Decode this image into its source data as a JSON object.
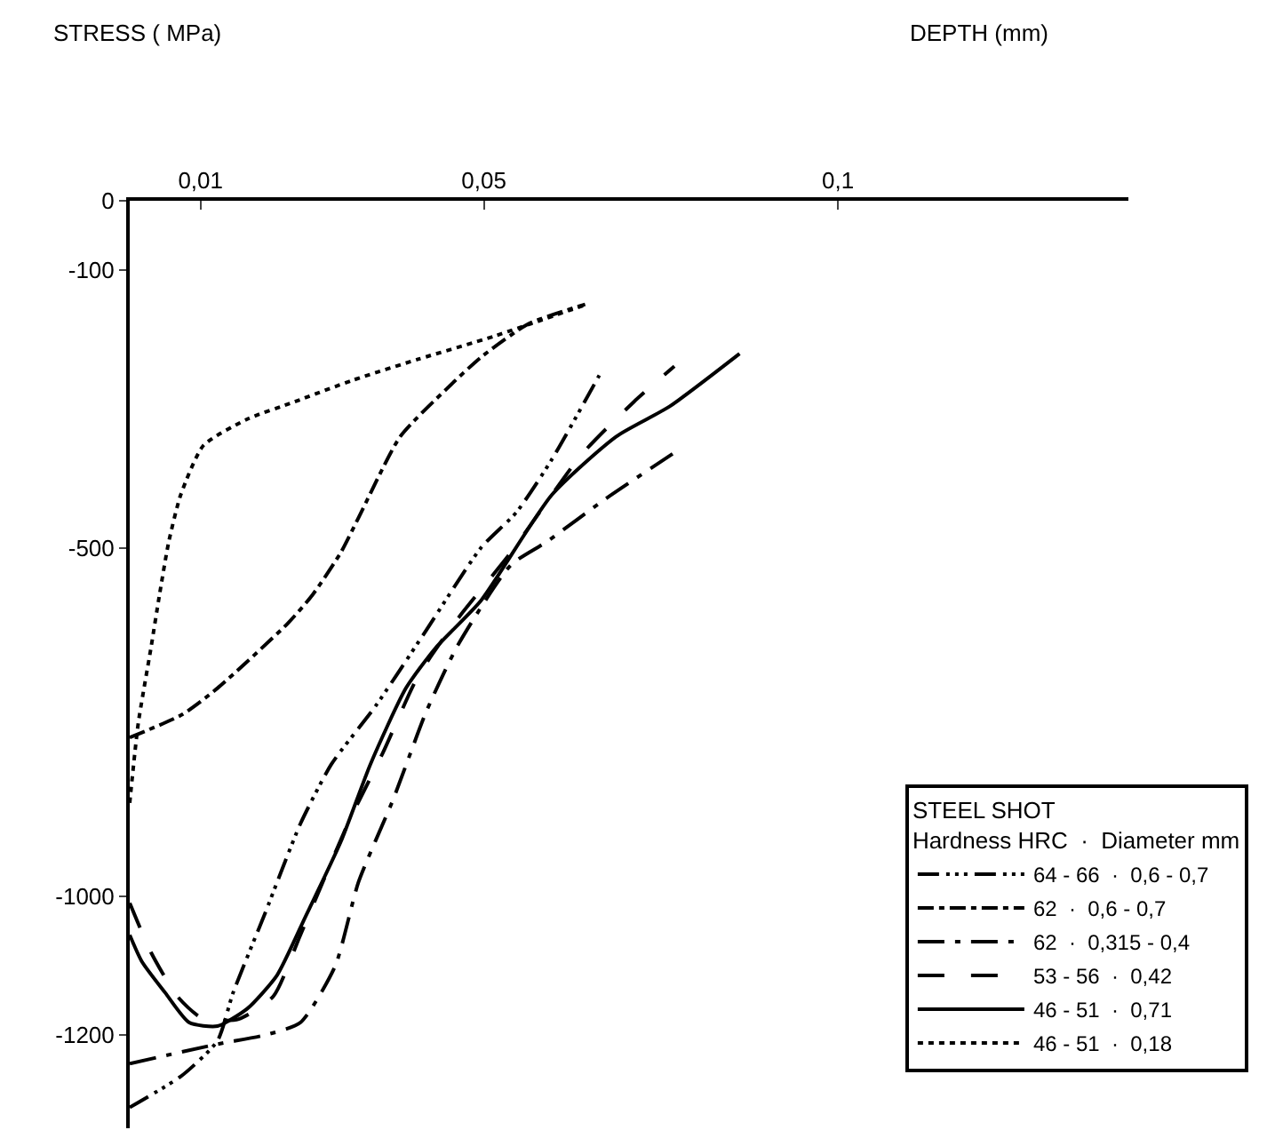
{
  "chart_data": {
    "type": "line",
    "annotations": [
      "STRESS ( MPa)",
      "DEPTH (mm)"
    ],
    "legend_title": "STEEL SHOT\nHardness HRC  ·  Diameter mm",
    "xlim": [
      0,
      0.141
    ],
    "ylim": [
      -1334,
      0
    ],
    "xticks": [
      {
        "value": 0.01,
        "label": "0,01"
      },
      {
        "value": 0.05,
        "label": "0,05"
      },
      {
        "value": 0.1,
        "label": "0,1"
      }
    ],
    "yticks": [
      0,
      -100,
      -500,
      -1000,
      -1200
    ],
    "grid": false,
    "legend": "bottom right",
    "marker": "none",
    "series": [
      {
        "name": "64 - 66  ·  0,6 - 0,7",
        "color": "#000000",
        "line_style": "dashdotdot",
        "x": [
          0,
          0.0074,
          0.0124,
          0.0146,
          0.0191,
          0.0241,
          0.0285,
          0.0347,
          0.0414,
          0.0496,
          0.0546,
          0.0596,
          0.0663
        ],
        "values": [
          -1304,
          -1258,
          -1208,
          -1139,
          -1025,
          -896,
          -810,
          -727,
          -625,
          -499,
          -448,
          -372,
          -251
        ]
      },
      {
        "name": "62  ·  0,6 - 0,7",
        "color": "#000000",
        "line_style": "dashdot",
        "x": [
          0,
          0.0074,
          0.0124,
          0.0223,
          0.0258,
          0.0298,
          0.0323,
          0.0382,
          0.0447,
          0.0496,
          0.0563,
          0.0643
        ],
        "values": [
          -772,
          -739,
          -701,
          -608,
          -567,
          -506,
          -456,
          -339,
          -271,
          -225,
          -177,
          -149
        ]
      },
      {
        "name": "62  ·  0,315 - 0,4",
        "color": "#000000",
        "line_style": "longdashdot",
        "x": [
          0,
          0.0124,
          0.0191,
          0.0241,
          0.029,
          0.0323,
          0.0372,
          0.0419,
          0.0464,
          0.0538,
          0.0588,
          0.067,
          0.0774
        ],
        "values": [
          -1241,
          -1213,
          -1200,
          -1182,
          -1101,
          -980,
          -861,
          -734,
          -638,
          -524,
          -491,
          -430,
          -359
        ]
      },
      {
        "name": "53 - 56  ·  0,42",
        "color": "#000000",
        "line_style": "longdash",
        "x": [
          0,
          0.003,
          0.0067,
          0.0104,
          0.0154,
          0.0203,
          0.0241,
          0.0308,
          0.0357,
          0.0407,
          0.0464,
          0.0538,
          0.0638,
          0.0712,
          0.0769
        ],
        "values": [
          -1010,
          -1081,
          -1144,
          -1177,
          -1177,
          -1144,
          -1056,
          -896,
          -795,
          -684,
          -600,
          -506,
          -365,
          -289,
          -238
        ]
      },
      {
        "name": "46 - 51  ·  0,71",
        "color": "#000000",
        "line_style": "solid",
        "x": [
          0,
          0.0017,
          0.005,
          0.0084,
          0.0124,
          0.0166,
          0.0208,
          0.0248,
          0.0298,
          0.034,
          0.039,
          0.0432,
          0.0496,
          0.0596,
          0.0687,
          0.0762,
          0.0861
        ],
        "values": [
          -1056,
          -1094,
          -1139,
          -1182,
          -1187,
          -1162,
          -1114,
          -1030,
          -922,
          -810,
          -701,
          -643,
          -575,
          -423,
          -339,
          -296,
          -220
        ]
      },
      {
        "name": "46 - 51  ·  0,18",
        "color": "#000000",
        "line_style": "dotted",
        "x": [
          0,
          0.0012,
          0.003,
          0.0042,
          0.0055,
          0.0072,
          0.0104,
          0.0166,
          0.0233,
          0.0315,
          0.0407,
          0.0514,
          0.0645
        ],
        "values": [
          -866,
          -752,
          -643,
          -567,
          -491,
          -423,
          -352,
          -314,
          -289,
          -258,
          -228,
          -195,
          -149
        ]
      }
    ]
  }
}
